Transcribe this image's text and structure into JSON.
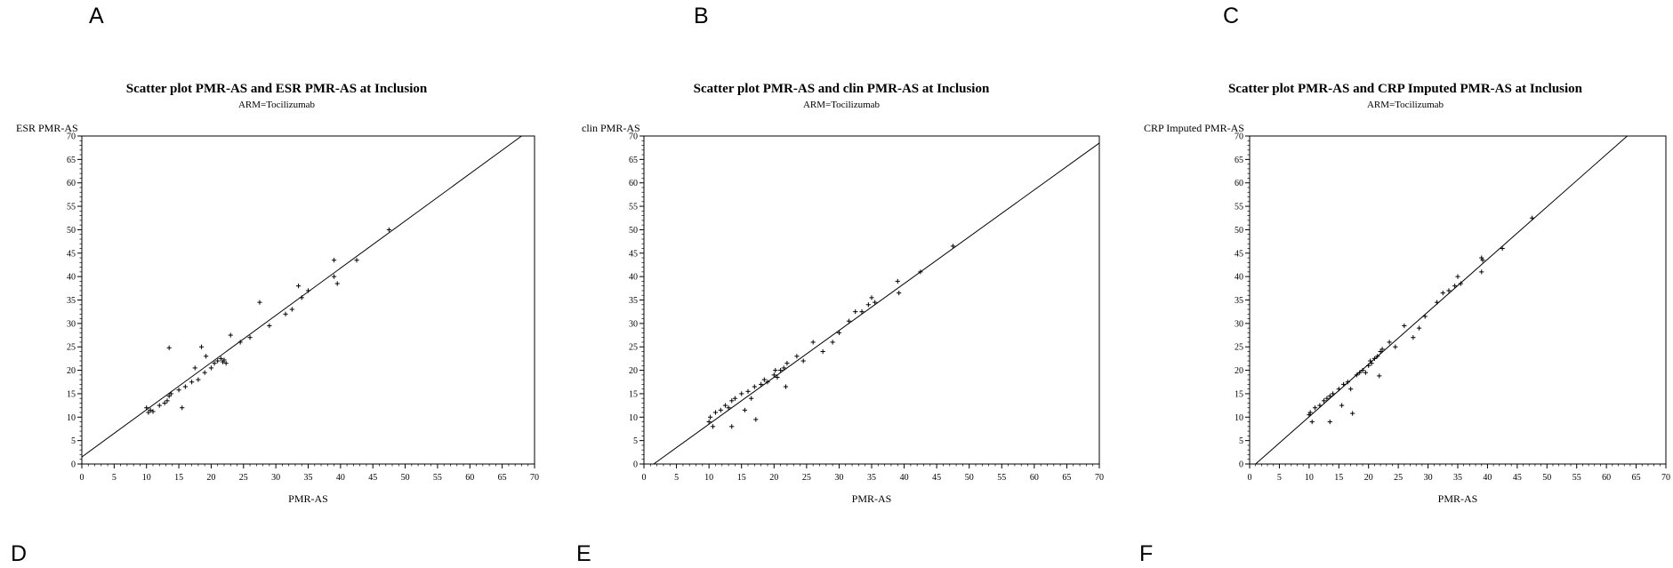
{
  "panel_letters": [
    "A",
    "B",
    "C",
    "D",
    "E",
    "F"
  ],
  "chart_data": [
    {
      "type": "scatter",
      "title": "Scatter plot  PMR-AS and ESR PMR-AS at Inclusion",
      "subtitle": "ARM=Tocilizumab",
      "xlabel": "PMR-AS",
      "ylabel": "ESR PMR-AS",
      "xlim": [
        0,
        70
      ],
      "ylim": [
        0,
        70
      ],
      "xticks": [
        0,
        5,
        10,
        15,
        20,
        25,
        30,
        35,
        40,
        45,
        50,
        55,
        60,
        65,
        70
      ],
      "yticks": [
        0,
        5,
        10,
        15,
        20,
        25,
        30,
        35,
        40,
        45,
        50,
        55,
        60,
        65,
        70
      ],
      "marker": "+",
      "grid": false,
      "fit_line": {
        "x1": 0,
        "y1": 1.5,
        "x2": 68,
        "y2": 70
      },
      "points": [
        [
          10,
          12
        ],
        [
          10.3,
          11
        ],
        [
          10.6,
          11.5
        ],
        [
          11,
          11.2
        ],
        [
          12,
          12.5
        ],
        [
          12.8,
          13
        ],
        [
          13.2,
          13.5
        ],
        [
          13.5,
          14.5
        ],
        [
          13.8,
          15
        ],
        [
          13.5,
          24.8
        ],
        [
          15,
          15.8
        ],
        [
          15.5,
          12
        ],
        [
          16,
          16.5
        ],
        [
          17,
          17.5
        ],
        [
          17.5,
          20.5
        ],
        [
          18,
          18
        ],
        [
          18.5,
          25
        ],
        [
          19,
          19.5
        ],
        [
          19.2,
          23
        ],
        [
          20,
          20.5
        ],
        [
          20.5,
          21.5
        ],
        [
          21,
          22
        ],
        [
          21.5,
          22.5
        ],
        [
          21.8,
          21.8
        ],
        [
          22,
          22.2
        ],
        [
          22.3,
          21.5
        ],
        [
          23,
          27.5
        ],
        [
          24.5,
          26
        ],
        [
          26,
          27
        ],
        [
          27.5,
          34.5
        ],
        [
          29,
          29.5
        ],
        [
          31.5,
          32
        ],
        [
          32.5,
          33
        ],
        [
          33.5,
          38
        ],
        [
          34,
          35.5
        ],
        [
          35,
          37
        ],
        [
          39,
          43.5
        ],
        [
          39,
          40
        ],
        [
          39.5,
          38.5
        ],
        [
          42.5,
          43.5
        ],
        [
          47.5,
          50
        ]
      ]
    },
    {
      "type": "scatter",
      "title": "Scatter plot  PMR-AS and clin PMR-AS at Inclusion",
      "subtitle": "ARM=Tocilizumab",
      "xlabel": "PMR-AS",
      "ylabel": "clin PMR-AS",
      "xlim": [
        0,
        70
      ],
      "ylim": [
        0,
        70
      ],
      "xticks": [
        0,
        5,
        10,
        15,
        20,
        25,
        30,
        35,
        40,
        45,
        50,
        55,
        60,
        65,
        70
      ],
      "yticks": [
        0,
        5,
        10,
        15,
        20,
        25,
        30,
        35,
        40,
        45,
        50,
        55,
        60,
        65,
        70
      ],
      "marker": "+",
      "grid": false,
      "fit_line": {
        "x1": 1.5,
        "y1": 0,
        "x2": 70,
        "y2": 68.5
      },
      "points": [
        [
          10,
          9
        ],
        [
          10.2,
          10
        ],
        [
          10.6,
          8
        ],
        [
          11,
          11
        ],
        [
          11.8,
          11.5
        ],
        [
          12.5,
          12.5
        ],
        [
          13,
          12
        ],
        [
          13.5,
          13.5
        ],
        [
          13.5,
          8
        ],
        [
          14,
          14
        ],
        [
          15,
          15
        ],
        [
          15.5,
          11.5
        ],
        [
          16,
          15.5
        ],
        [
          16.5,
          14
        ],
        [
          17,
          16.5
        ],
        [
          17.2,
          9.5
        ],
        [
          18,
          17
        ],
        [
          18.5,
          18
        ],
        [
          19,
          17.5
        ],
        [
          20,
          19
        ],
        [
          20.2,
          20
        ],
        [
          20.5,
          18.5
        ],
        [
          21,
          20
        ],
        [
          21.5,
          20.5
        ],
        [
          21.8,
          16.5
        ],
        [
          22,
          21.5
        ],
        [
          23.5,
          23
        ],
        [
          24.5,
          22
        ],
        [
          26,
          26
        ],
        [
          27.5,
          24
        ],
        [
          29,
          26
        ],
        [
          30,
          28
        ],
        [
          31.5,
          30.5
        ],
        [
          32.5,
          32.5
        ],
        [
          33.5,
          32.5
        ],
        [
          34.5,
          34
        ],
        [
          35,
          35.5
        ],
        [
          35.5,
          34.5
        ],
        [
          39,
          39
        ],
        [
          39.2,
          36.5
        ],
        [
          42.5,
          41
        ],
        [
          47.5,
          46.5
        ]
      ]
    },
    {
      "type": "scatter",
      "title": "Scatter plot  PMR-AS and CRP Imputed PMR-AS at Inclusion",
      "subtitle": "ARM=Tocilizumab",
      "xlabel": "PMR-AS",
      "ylabel": "CRP Imputed PMR-AS",
      "xlim": [
        0,
        70
      ],
      "ylim": [
        0,
        70
      ],
      "xticks": [
        0,
        5,
        10,
        15,
        20,
        25,
        30,
        35,
        40,
        45,
        50,
        55,
        60,
        65,
        70
      ],
      "yticks": [
        0,
        5,
        10,
        15,
        20,
        25,
        30,
        35,
        40,
        45,
        50,
        55,
        60,
        65,
        70
      ],
      "marker": "+",
      "grid": false,
      "fit_line": {
        "x1": 1,
        "y1": 0,
        "x2": 63.5,
        "y2": 70
      },
      "points": [
        [
          10,
          10.5
        ],
        [
          10.2,
          11
        ],
        [
          10.5,
          9
        ],
        [
          11,
          12
        ],
        [
          11.8,
          12.5
        ],
        [
          12.5,
          13.5
        ],
        [
          13,
          14
        ],
        [
          13.5,
          14.5
        ],
        [
          13.5,
          9
        ],
        [
          14,
          15
        ],
        [
          15,
          16
        ],
        [
          15.5,
          12.5
        ],
        [
          15.8,
          17
        ],
        [
          16.5,
          17.5
        ],
        [
          17,
          16
        ],
        [
          17.3,
          10.8
        ],
        [
          18,
          19
        ],
        [
          18.5,
          19.5
        ],
        [
          19,
          20
        ],
        [
          19.5,
          19.5
        ],
        [
          20,
          21
        ],
        [
          20.3,
          22
        ],
        [
          20.5,
          21.5
        ],
        [
          21,
          22.5
        ],
        [
          21.5,
          23
        ],
        [
          21.8,
          18.8
        ],
        [
          22,
          24
        ],
        [
          22.3,
          24.5
        ],
        [
          23.5,
          26
        ],
        [
          24.5,
          25
        ],
        [
          26,
          29.5
        ],
        [
          27.5,
          27
        ],
        [
          28.5,
          29
        ],
        [
          29.5,
          31.5
        ],
        [
          31.5,
          34.5
        ],
        [
          32.5,
          36.5
        ],
        [
          33.5,
          37
        ],
        [
          34.5,
          38
        ],
        [
          35,
          40
        ],
        [
          35.5,
          38.5
        ],
        [
          39,
          44
        ],
        [
          39.2,
          43.5
        ],
        [
          39,
          41
        ],
        [
          42.5,
          46
        ],
        [
          47.5,
          52.5
        ]
      ]
    }
  ]
}
